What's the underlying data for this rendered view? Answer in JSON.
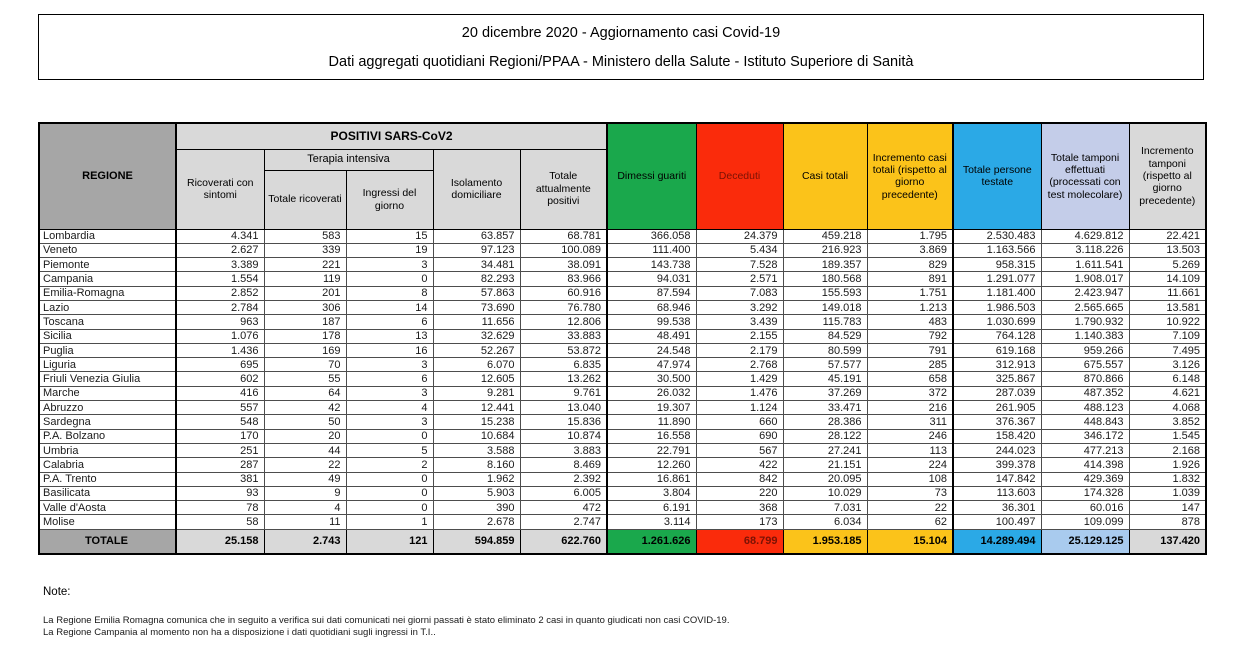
{
  "title": {
    "line1": "20 dicembre 2020 - Aggiornamento casi Covid-19",
    "line2": "Dati aggregati quotidiani Regioni/PPAA - Ministero della Salute - Istituto Superiore di Sanità"
  },
  "table": {
    "header": {
      "regione": "REGIONE",
      "positivi_group": "POSITIVI SARS-CoV2",
      "terapia_group": "Terapia intensiva",
      "ricoverati": "Ricoverati con sintomi",
      "totale_ricoverati": "Totale ricoverati",
      "ingressi": "Ingressi del giorno",
      "isolamento": "Isolamento domiciliare",
      "attualmente_positivi": "Totale attualmente positivi",
      "dimessi": "Dimessi guariti",
      "deceduti": "Deceduti",
      "casi_totali": "Casi totali",
      "incremento_casi": "Incremento casi totali (rispetto al giorno precedente)",
      "persone_testate": "Totale persone testate",
      "tamponi": "Totale tamponi effettuati (processati con test molecolare)",
      "incremento_tamponi": "Incremento tamponi (rispetto al giorno precedente)"
    },
    "rows": [
      {
        "region": "Lombardia",
        "values": [
          "4.341",
          "583",
          "15",
          "63.857",
          "68.781",
          "366.058",
          "24.379",
          "459.218",
          "1.795",
          "2.530.483",
          "4.629.812",
          "22.421"
        ]
      },
      {
        "region": "Veneto",
        "values": [
          "2.627",
          "339",
          "19",
          "97.123",
          "100.089",
          "111.400",
          "5.434",
          "216.923",
          "3.869",
          "1.163.566",
          "3.118.226",
          "13.503"
        ]
      },
      {
        "region": "Piemonte",
        "values": [
          "3.389",
          "221",
          "3",
          "34.481",
          "38.091",
          "143.738",
          "7.528",
          "189.357",
          "829",
          "958.315",
          "1.611.541",
          "5.269"
        ]
      },
      {
        "region": "Campania",
        "values": [
          "1.554",
          "119",
          "0",
          "82.293",
          "83.966",
          "94.031",
          "2.571",
          "180.568",
          "891",
          "1.291.077",
          "1.908.017",
          "14.109"
        ]
      },
      {
        "region": "Emilia-Romagna",
        "values": [
          "2.852",
          "201",
          "8",
          "57.863",
          "60.916",
          "87.594",
          "7.083",
          "155.593",
          "1.751",
          "1.181.400",
          "2.423.947",
          "11.661"
        ]
      },
      {
        "region": "Lazio",
        "values": [
          "2.784",
          "306",
          "14",
          "73.690",
          "76.780",
          "68.946",
          "3.292",
          "149.018",
          "1.213",
          "1.986.503",
          "2.565.665",
          "13.581"
        ]
      },
      {
        "region": "Toscana",
        "values": [
          "963",
          "187",
          "6",
          "11.656",
          "12.806",
          "99.538",
          "3.439",
          "115.783",
          "483",
          "1.030.699",
          "1.790.932",
          "10.922"
        ]
      },
      {
        "region": "Sicilia",
        "values": [
          "1.076",
          "178",
          "13",
          "32.629",
          "33.883",
          "48.491",
          "2.155",
          "84.529",
          "792",
          "764.128",
          "1.140.383",
          "7.109"
        ]
      },
      {
        "region": "Puglia",
        "values": [
          "1.436",
          "169",
          "16",
          "52.267",
          "53.872",
          "24.548",
          "2.179",
          "80.599",
          "791",
          "619.168",
          "959.266",
          "7.495"
        ]
      },
      {
        "region": "Liguria",
        "values": [
          "695",
          "70",
          "3",
          "6.070",
          "6.835",
          "47.974",
          "2.768",
          "57.577",
          "285",
          "312.913",
          "675.557",
          "3.126"
        ]
      },
      {
        "region": "Friuli Venezia Giulia",
        "values": [
          "602",
          "55",
          "6",
          "12.605",
          "13.262",
          "30.500",
          "1.429",
          "45.191",
          "658",
          "325.867",
          "870.866",
          "6.148"
        ]
      },
      {
        "region": "Marche",
        "values": [
          "416",
          "64",
          "3",
          "9.281",
          "9.761",
          "26.032",
          "1.476",
          "37.269",
          "372",
          "287.039",
          "487.352",
          "4.621"
        ]
      },
      {
        "region": "Abruzzo",
        "values": [
          "557",
          "42",
          "4",
          "12.441",
          "13.040",
          "19.307",
          "1.124",
          "33.471",
          "216",
          "261.905",
          "488.123",
          "4.068"
        ]
      },
      {
        "region": "Sardegna",
        "values": [
          "548",
          "50",
          "3",
          "15.238",
          "15.836",
          "11.890",
          "660",
          "28.386",
          "311",
          "376.367",
          "448.843",
          "3.852"
        ]
      },
      {
        "region": "P.A. Bolzano",
        "values": [
          "170",
          "20",
          "0",
          "10.684",
          "10.874",
          "16.558",
          "690",
          "28.122",
          "246",
          "158.420",
          "346.172",
          "1.545"
        ]
      },
      {
        "region": "Umbria",
        "values": [
          "251",
          "44",
          "5",
          "3.588",
          "3.883",
          "22.791",
          "567",
          "27.241",
          "113",
          "244.023",
          "477.213",
          "2.168"
        ]
      },
      {
        "region": "Calabria",
        "values": [
          "287",
          "22",
          "2",
          "8.160",
          "8.469",
          "12.260",
          "422",
          "21.151",
          "224",
          "399.378",
          "414.398",
          "1.926"
        ]
      },
      {
        "region": "P.A. Trento",
        "values": [
          "381",
          "49",
          "0",
          "1.962",
          "2.392",
          "16.861",
          "842",
          "20.095",
          "108",
          "147.842",
          "429.369",
          "1.832"
        ]
      },
      {
        "region": "Basilicata",
        "values": [
          "93",
          "9",
          "0",
          "5.903",
          "6.005",
          "3.804",
          "220",
          "10.029",
          "73",
          "113.603",
          "174.328",
          "1.039"
        ]
      },
      {
        "region": "Valle d'Aosta",
        "values": [
          "78",
          "4",
          "0",
          "390",
          "472",
          "6.191",
          "368",
          "7.031",
          "22",
          "36.301",
          "60.016",
          "147"
        ]
      },
      {
        "region": "Molise",
        "values": [
          "58",
          "11",
          "1",
          "2.678",
          "2.747",
          "3.114",
          "173",
          "6.034",
          "62",
          "100.497",
          "109.099",
          "878"
        ]
      }
    ],
    "total": {
      "label": "TOTALE",
      "values": [
        "25.158",
        "2.743",
        "121",
        "594.859",
        "622.760",
        "1.261.626",
        "68.799",
        "1.953.185",
        "15.104",
        "14.289.494",
        "25.129.125",
        "137.420"
      ]
    }
  },
  "notes": {
    "heading": "Note:",
    "line1": "La Regione Emilia Romagna comunica che in seguito a verifica sui dati comunicati nei giorni passati è stato eliminato 2 casi in quanto giudicati non casi COVID-19.",
    "line2": "La Regione Campania al momento non ha a disposizione i dati quotidiani sugli ingressi in T.I.."
  },
  "colors": {
    "green": "#1AA84C",
    "red": "#FA2B0B",
    "red_text": "#7B1205",
    "yellow": "#FBC31A",
    "blue": "#2BA9E6",
    "lavender": "#C4CDE9",
    "light_blue": "#A9CBEE",
    "gray_dark": "#A6A6A6",
    "gray_light": "#D9D9D9"
  }
}
